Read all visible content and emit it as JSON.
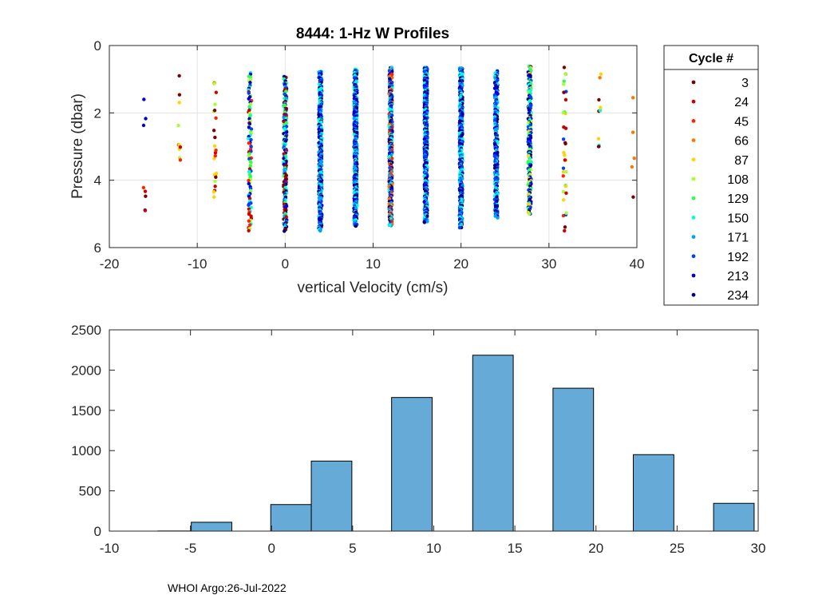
{
  "chart_data": [
    {
      "type": "scatter",
      "title": "8444: 1-Hz W Profiles",
      "xlabel": "vertical Velocity (cm/s)",
      "ylabel": "Pressure (dbar)",
      "xlim": [
        -20,
        40
      ],
      "ylim": [
        0,
        6
      ],
      "y_reversed": true,
      "grid": true,
      "xticks": [
        "-20",
        "-10",
        "0",
        "10",
        "20",
        "30",
        "40"
      ],
      "yticks": [
        "0",
        "2",
        "4",
        "6"
      ],
      "legend": {
        "title": "Cycle #",
        "placement": "outside-right",
        "entries": [
          {
            "label": "3",
            "color": "#800000"
          },
          {
            "label": "24",
            "color": "#cc0000"
          },
          {
            "label": "45",
            "color": "#ff2200"
          },
          {
            "label": "66",
            "color": "#ff7700"
          },
          {
            "label": "87",
            "color": "#ffd400"
          },
          {
            "label": "108",
            "color": "#a8ff30"
          },
          {
            "label": "129",
            "color": "#30ff50"
          },
          {
            "label": "150",
            "color": "#00ffd8"
          },
          {
            "label": "171",
            "color": "#00a0ff"
          },
          {
            "label": "192",
            "color": "#0040ff"
          },
          {
            "label": "213",
            "color": "#0000d0"
          },
          {
            "label": "234",
            "color": "#000080"
          }
        ]
      },
      "columns": [
        {
          "x": -16,
          "ymin": 1.6,
          "ymax": 4.9,
          "count": 8,
          "palette": [
            0,
            1,
            2,
            10,
            11
          ]
        },
        {
          "x": -12,
          "ymin": 0.9,
          "ymax": 3.4,
          "count": 10,
          "palette": [
            1,
            2,
            4,
            5,
            0
          ]
        },
        {
          "x": -8,
          "ymin": 1.1,
          "ymax": 4.5,
          "count": 24,
          "palette": [
            1,
            2,
            4,
            5,
            0
          ]
        },
        {
          "x": -4,
          "ymin": 0.8,
          "ymax": 5.5,
          "count": 90,
          "palette": [
            1,
            2,
            5,
            6,
            7,
            9,
            10
          ]
        },
        {
          "x": 0,
          "ymin": 0.9,
          "ymax": 5.5,
          "count": 180,
          "palette": [
            0,
            1,
            6,
            7,
            8,
            9,
            10,
            11
          ]
        },
        {
          "x": 4,
          "ymin": 0.75,
          "ymax": 5.5,
          "count": 320,
          "palette": [
            7,
            8,
            9,
            10,
            11
          ]
        },
        {
          "x": 8,
          "ymin": 0.7,
          "ymax": 5.35,
          "count": 360,
          "palette": [
            7,
            8,
            9,
            10,
            11
          ]
        },
        {
          "x": 12,
          "ymin": 0.65,
          "ymax": 5.35,
          "count": 420,
          "palette": [
            2,
            3,
            7,
            8,
            9,
            10,
            11
          ]
        },
        {
          "x": 16,
          "ymin": 0.65,
          "ymax": 5.25,
          "count": 420,
          "palette": [
            7,
            8,
            9,
            10,
            11
          ]
        },
        {
          "x": 20,
          "ymin": 0.65,
          "ymax": 5.4,
          "count": 380,
          "palette": [
            7,
            8,
            9,
            10,
            11
          ]
        },
        {
          "x": 24,
          "ymin": 0.75,
          "ymax": 5.1,
          "count": 220,
          "palette": [
            7,
            8,
            9,
            10,
            11
          ]
        },
        {
          "x": 27.8,
          "ymin": 0.6,
          "ymax": 5.0,
          "count": 180,
          "palette": [
            4,
            5,
            6,
            7,
            9,
            10,
            11
          ]
        },
        {
          "x": 31.8,
          "ymin": 0.65,
          "ymax": 5.5,
          "count": 34,
          "palette": [
            0,
            1,
            2,
            4,
            5,
            6,
            9
          ]
        },
        {
          "x": 35.8,
          "ymin": 0.85,
          "ymax": 3.0,
          "count": 10,
          "palette": [
            0,
            3,
            4,
            7,
            9
          ]
        },
        {
          "x": 39.6,
          "ymin": 1.55,
          "ymax": 4.5,
          "count": 5,
          "palette": [
            0,
            1,
            3
          ]
        }
      ]
    },
    {
      "type": "bar",
      "title": "",
      "xlabel": "",
      "ylabel": "",
      "xlim": [
        -10,
        30
      ],
      "ylim": [
        0,
        2500
      ],
      "grid": false,
      "xticks": [
        "-10",
        "-5",
        "0",
        "5",
        "10",
        "15",
        "20",
        "25",
        "30"
      ],
      "yticks": [
        "0",
        "500",
        "1000",
        "1500",
        "2000",
        "2500"
      ],
      "bin_width": 2.5,
      "bins": [
        {
          "x0": -8.5,
          "value": 0
        },
        {
          "x0": -6.0,
          "value": 2
        },
        {
          "x0": -4.95,
          "value": 110
        },
        {
          "x0": -0.1,
          "value": 330
        },
        {
          "x0": 2.45,
          "value": 870
        },
        {
          "x0": 7.4,
          "value": 1660
        },
        {
          "x0": 12.4,
          "value": 2185
        },
        {
          "x0": 17.35,
          "value": 1775
        },
        {
          "x0": 22.3,
          "value": 950
        },
        {
          "x0": 27.25,
          "value": 345
        },
        {
          "x0": 32.3,
          "value": 0
        }
      ],
      "bar_color": "#66aad8",
      "bin_starts_are_display_units": false
    }
  ],
  "footer": "WHOI Argo:26-Jul-2022"
}
